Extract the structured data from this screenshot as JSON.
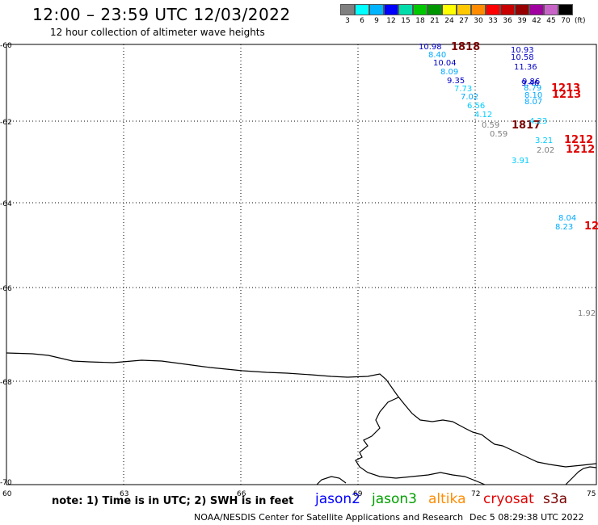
{
  "header": {
    "title": "12:00 – 23:59 UTC 12/03/2022",
    "subtitle": "12 hour collection of altimeter wave heights"
  },
  "colorbar": {
    "colors": [
      "#808080",
      "#00ffff",
      "#00b4ff",
      "#0000ff",
      "#00ddaa",
      "#00c800",
      "#009600",
      "#ffff00",
      "#ffc800",
      "#ff8c00",
      "#ff0000",
      "#c80000",
      "#960000",
      "#a000a0",
      "#c864c8",
      "#000000"
    ],
    "labels": [
      "3",
      "6",
      "9",
      "12",
      "15",
      "18",
      "21",
      "24",
      "27",
      "30",
      "33",
      "36",
      "39",
      "42",
      "45",
      "70"
    ],
    "unit": "(ft)"
  },
  "axes": {
    "lat_labels": [
      "-60",
      "-62",
      "-64",
      "-66",
      "-68",
      "-70"
    ],
    "lon_labels": [
      "60",
      "63",
      "66",
      "69",
      "72",
      "75"
    ]
  },
  "observations": [
    {
      "text": "10.98",
      "color": "#0000c8"
    },
    {
      "text": "1818",
      "color": "#7a0000",
      "bold": true
    },
    {
      "text": "8.40",
      "color": "#00aaff"
    },
    {
      "text": "10.04",
      "color": "#0000c8"
    },
    {
      "text": "8.09",
      "color": "#00aaff"
    },
    {
      "text": "9.35",
      "color": "#0000c8"
    },
    {
      "text": "7.73",
      "color": "#00ccff"
    },
    {
      "text": "7.02",
      "color": "#00aaff"
    },
    {
      "text": "6.56",
      "color": "#00ccff"
    },
    {
      "text": "4.12",
      "color": "#00ccff"
    },
    {
      "text": "0.59",
      "color": "#808080"
    },
    {
      "text": "0.59",
      "color": "#808080"
    },
    {
      "text": "1817",
      "color": "#7a0000",
      "bold": true
    },
    {
      "text": "10.93",
      "color": "#0000c8"
    },
    {
      "text": "10.58",
      "color": "#0000c8"
    },
    {
      "text": "11.36",
      "color": "#0000c8"
    },
    {
      "text": "9.86",
      "color": "#0000c8"
    },
    {
      "text": "9.46",
      "color": "#0000c8"
    },
    {
      "text": "8.79",
      "color": "#00aaff"
    },
    {
      "text": "8.10",
      "color": "#00aaff"
    },
    {
      "text": "8.07",
      "color": "#00aaff"
    },
    {
      "text": "1213",
      "color": "#e00000",
      "bold": true
    },
    {
      "text": "1213",
      "color": "#e00000",
      "bold": true
    },
    {
      "text": "4.23",
      "color": "#00ccff"
    },
    {
      "text": "3.21",
      "color": "#00ccff"
    },
    {
      "text": "2.02",
      "color": "#808080"
    },
    {
      "text": "1212",
      "color": "#e00000",
      "bold": true
    },
    {
      "text": "1212",
      "color": "#e00000",
      "bold": true
    },
    {
      "text": "3.91",
      "color": "#00ccff"
    },
    {
      "text": "8.04",
      "color": "#00aaff"
    },
    {
      "text": "8.23",
      "color": "#00aaff"
    },
    {
      "text": "12",
      "color": "#e00000",
      "bold": true
    },
    {
      "text": "1.92",
      "color": "#808080"
    }
  ],
  "footer": {
    "note": "note:  1) Time is in UTC;  2) SWH is in feet",
    "legend": [
      {
        "name": "jason2",
        "color": "#0000ff"
      },
      {
        "name": "jason3",
        "color": "#00a000"
      },
      {
        "name": "altika",
        "color": "#ff8c00"
      },
      {
        "name": "cryosat",
        "color": "#e00000"
      },
      {
        "name": "s3a",
        "color": "#7a0000"
      }
    ],
    "credit": "NOAA/NESDIS Center for Satellite Applications and Research",
    "timestamp": "Dec  5 08:29:38 UTC 2022"
  }
}
